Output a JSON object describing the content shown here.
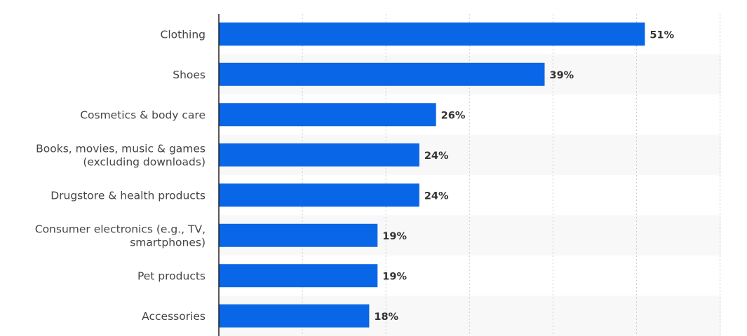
{
  "chart_data": {
    "type": "bar",
    "orientation": "horizontal",
    "categories": [
      [
        "Clothing"
      ],
      [
        "Shoes"
      ],
      [
        "Cosmetics & body care"
      ],
      [
        "Books, movies, music & games",
        "(excluding downloads)"
      ],
      [
        "Drugstore & health products"
      ],
      [
        "Consumer electronics (e.g., TV,",
        "smartphones)"
      ],
      [
        "Pet products"
      ],
      [
        "Accessories"
      ]
    ],
    "values": [
      51,
      39,
      26,
      24,
      24,
      19,
      19,
      18
    ],
    "value_labels": [
      "51%",
      "39%",
      "26%",
      "24%",
      "24%",
      "19%",
      "19%",
      "18%"
    ],
    "unit": "%",
    "xlim": [
      0,
      60
    ],
    "grid": true,
    "title": "",
    "xlabel": "",
    "ylabel": ""
  },
  "colors": {
    "bar": "#0966e6",
    "grid": "#cccccc",
    "band": "#f8f8f8",
    "axis": "#222222"
  }
}
